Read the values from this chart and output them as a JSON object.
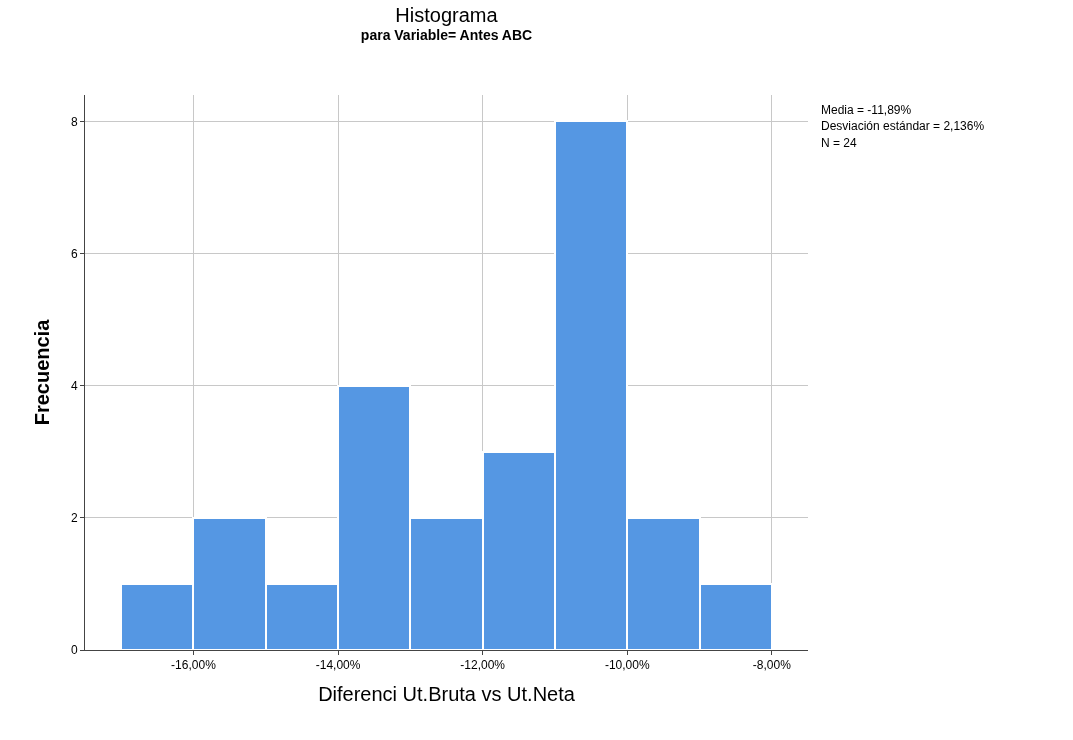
{
  "chart_data": {
    "type": "histogram",
    "title": "Histograma",
    "subtitle": "para Variable= Antes ABC",
    "xlabel": "Diferenci Ut.Bruta vs Ut.Neta",
    "ylabel": "Frecuencia",
    "bins": [
      -17,
      -16,
      -15,
      -14,
      -13,
      -12,
      -11,
      -10,
      -9,
      -8
    ],
    "values": [
      1,
      2,
      1,
      4,
      2,
      3,
      8,
      2,
      1
    ],
    "color": "#5597e3",
    "xlim": [
      -17.5,
      -7.5
    ],
    "xticks": [
      {
        "value": -16,
        "label": "-16,00%"
      },
      {
        "value": -14,
        "label": "-14,00%"
      },
      {
        "value": -12,
        "label": "-12,00%"
      },
      {
        "value": -10,
        "label": "-10,00%"
      },
      {
        "value": -8,
        "label": "-8,00%"
      }
    ],
    "ylim": [
      0,
      8.4
    ],
    "yticks": [
      0,
      2,
      4,
      6,
      8
    ],
    "grid": true,
    "annotations": [
      "Media = -11,89%",
      "Desviación estándar = 2,136%",
      "N = 24"
    ]
  }
}
